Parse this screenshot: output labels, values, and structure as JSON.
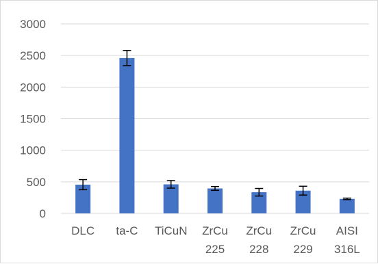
{
  "chart_data": {
    "type": "bar",
    "title": "",
    "xlabel": "",
    "ylabel": "",
    "categories": [
      [
        "DLC"
      ],
      [
        "ta-C"
      ],
      [
        "TiCuN"
      ],
      [
        "ZrCu",
        "225"
      ],
      [
        "ZrCu",
        "228"
      ],
      [
        "ZrCu",
        "229"
      ],
      [
        "AISI",
        "316L"
      ]
    ],
    "values": [
      455,
      2460,
      460,
      395,
      335,
      360,
      230
    ],
    "error": [
      80,
      120,
      60,
      30,
      60,
      70,
      12
    ],
    "ylim": [
      0,
      3000
    ],
    "yticks": [
      0,
      500,
      1000,
      1500,
      2000,
      2500,
      3000
    ],
    "grid": true,
    "legend": "none",
    "colors": {
      "bar": "#4472c4",
      "grid": "#d9d9d9",
      "errorbar": "#000000",
      "text": "#595959"
    }
  }
}
